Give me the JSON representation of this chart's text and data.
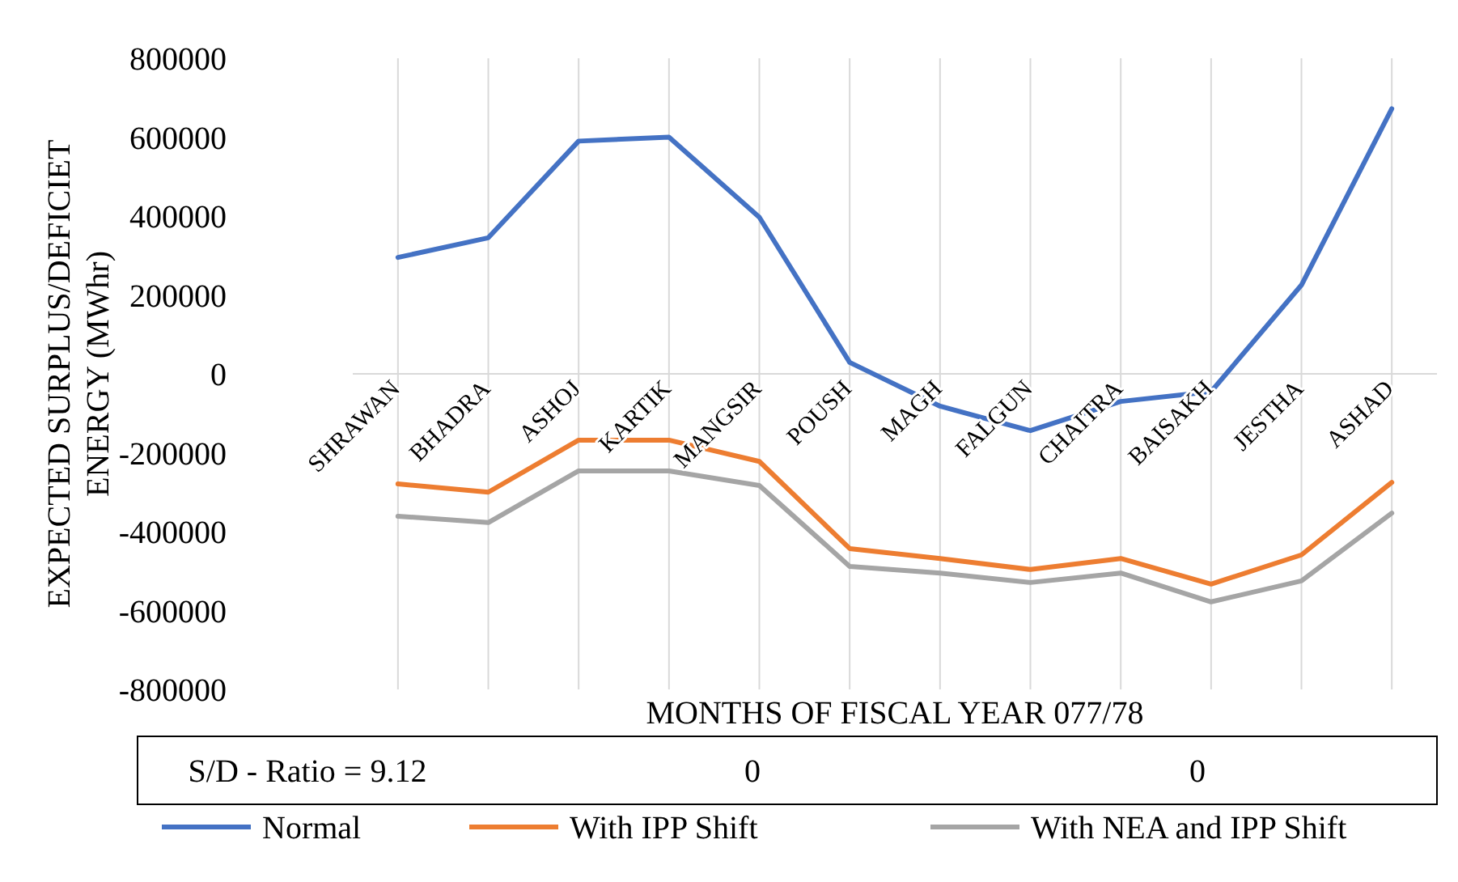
{
  "chart_data": {
    "type": "line",
    "xlabel": "MONTHS OF FISCAL YEAR 077/78",
    "ylabel": "EXPECTED SURPLUS/DEFICIET ENERGY (MWhr)",
    "categories": [
      "SHRAWAN",
      "BHADRA",
      "ASHOJ",
      "KARTIK",
      "MANGSIR",
      "POUSH",
      "MAGH",
      "FALGUN",
      "CHAITRA",
      "BAISAKH",
      "JESTHA",
      "ASHAD"
    ],
    "series": [
      {
        "name": "Normal",
        "color": "#4472c4",
        "values": [
          295000,
          345000,
          590000,
          600000,
          397000,
          29000,
          -82000,
          -144000,
          -70000,
          -45000,
          225000,
          672000
        ]
      },
      {
        "name": "With IPP Shift",
        "color": "#ed7d31",
        "values": [
          -279000,
          -300000,
          -168000,
          -168000,
          -222000,
          -443000,
          -468000,
          -496000,
          -468000,
          -533000,
          -459000,
          -275000
        ]
      },
      {
        "name": "With NEA and IPP Shift",
        "color": "#a5a5a5",
        "values": [
          -361000,
          -377000,
          -246000,
          -246000,
          -283000,
          -488000,
          -505000,
          -529000,
          -505000,
          -578000,
          -525000,
          -353000
        ]
      }
    ],
    "ylim": [
      -800000,
      800000
    ],
    "yticks": [
      -800000,
      -600000,
      -400000,
      -200000,
      0,
      200000,
      400000,
      600000,
      800000
    ],
    "grid": "x",
    "legend": "bottom",
    "marker": "none",
    "line_style": "solid",
    "annotations": [
      "S/D - Ratio = 9.12",
      "0",
      "0"
    ]
  }
}
